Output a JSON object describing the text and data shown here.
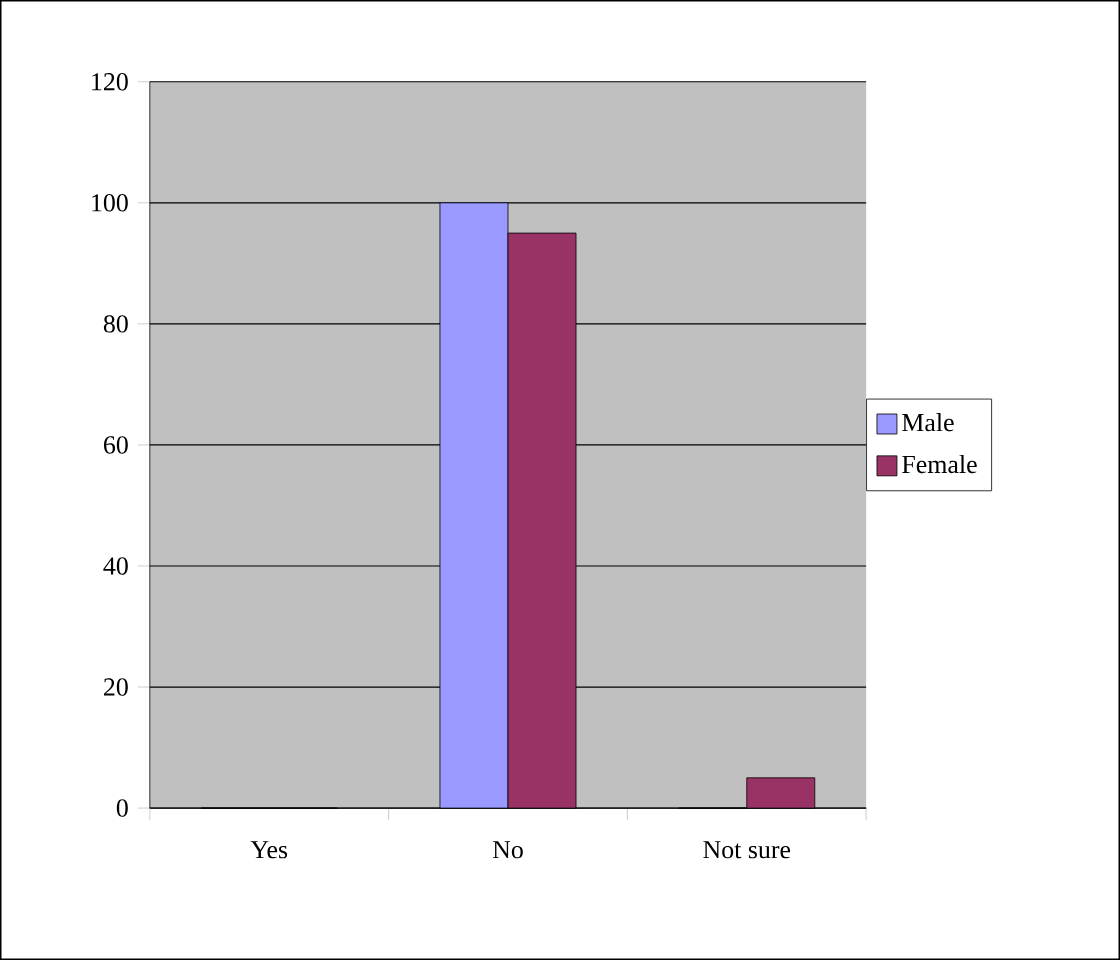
{
  "chart_data": {
    "type": "bar",
    "categories": [
      "Yes",
      "No",
      "Not sure"
    ],
    "series": [
      {
        "name": "Male",
        "color": "#9999ff",
        "values": [
          0,
          100,
          0
        ]
      },
      {
        "name": "Female",
        "color": "#993366",
        "values": [
          0,
          95,
          5
        ]
      }
    ],
    "ylim": [
      0,
      120
    ],
    "yticks": [
      0,
      20,
      40,
      60,
      80,
      100,
      120
    ],
    "grid": "y",
    "legend": "right"
  }
}
